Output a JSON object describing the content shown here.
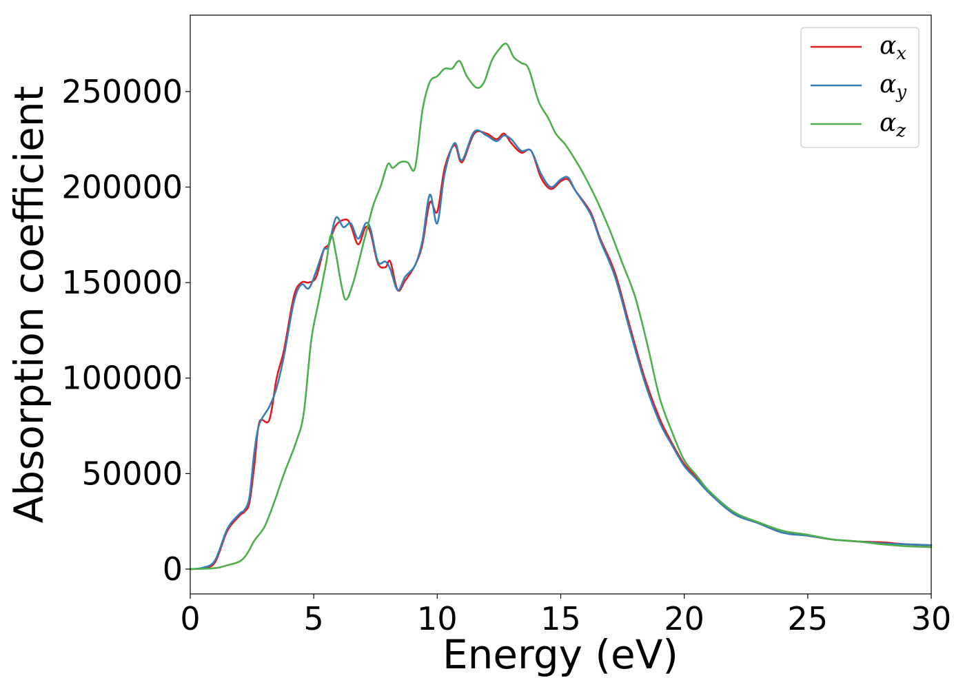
{
  "chart_data": {
    "type": "line",
    "title": "",
    "xlabel": "Energy (eV)",
    "ylabel": "Absorption coefficient",
    "xlim": [
      0,
      30
    ],
    "ylim": [
      -13000,
      290000
    ],
    "xticks": [
      0,
      5,
      10,
      15,
      20,
      25,
      30
    ],
    "yticks": [
      0,
      50000,
      100000,
      150000,
      200000,
      250000
    ],
    "grid": false,
    "legend_position": "top-right",
    "series": [
      {
        "name": "α",
        "subscript": "x",
        "color": "#e41a1c",
        "points": [
          [
            0,
            0
          ],
          [
            0.5,
            500
          ],
          [
            1,
            3500
          ],
          [
            1.5,
            20000
          ],
          [
            2,
            28000
          ],
          [
            2.2,
            30000
          ],
          [
            2.4,
            35000
          ],
          [
            2.6,
            55000
          ],
          [
            2.8,
            77000
          ],
          [
            3.2,
            78000
          ],
          [
            3.5,
            100000
          ],
          [
            3.8,
            115000
          ],
          [
            4.2,
            143000
          ],
          [
            4.5,
            150000
          ],
          [
            4.8,
            150000
          ],
          [
            5.1,
            153000
          ],
          [
            5.4,
            167000
          ],
          [
            5.6,
            170000
          ],
          [
            5.9,
            180000
          ],
          [
            6.3,
            183000
          ],
          [
            6.5,
            180000
          ],
          [
            6.8,
            170000
          ],
          [
            7.1,
            179000
          ],
          [
            7.3,
            176000
          ],
          [
            7.6,
            160000
          ],
          [
            7.9,
            158000
          ],
          [
            8.1,
            161000
          ],
          [
            8.4,
            146000
          ],
          [
            8.7,
            151000
          ],
          [
            9.1,
            159000
          ],
          [
            9.4,
            170000
          ],
          [
            9.7,
            192000
          ],
          [
            10,
            187000
          ],
          [
            10.3,
            210000
          ],
          [
            10.7,
            222000
          ],
          [
            11,
            213000
          ],
          [
            11.5,
            228000
          ],
          [
            12,
            228000
          ],
          [
            12.4,
            225000
          ],
          [
            12.7,
            228000
          ],
          [
            13,
            223000
          ],
          [
            13.4,
            218000
          ],
          [
            13.8,
            219000
          ],
          [
            14.2,
            205000
          ],
          [
            14.6,
            199000
          ],
          [
            15,
            203000
          ],
          [
            15.3,
            204000
          ],
          [
            15.6,
            198000
          ],
          [
            16.2,
            187000
          ],
          [
            16.6,
            173000
          ],
          [
            17.2,
            155000
          ],
          [
            17.8,
            127000
          ],
          [
            18.4,
            100000
          ],
          [
            19,
            79000
          ],
          [
            19.5,
            66000
          ],
          [
            20,
            55000
          ],
          [
            20.5,
            48000
          ],
          [
            21,
            40000
          ],
          [
            22,
            29000
          ],
          [
            23,
            24000
          ],
          [
            24,
            19000
          ],
          [
            25,
            17500
          ],
          [
            26,
            15500
          ],
          [
            27,
            14500
          ],
          [
            28,
            14000
          ],
          [
            29,
            13000
          ],
          [
            30,
            12500
          ]
        ]
      },
      {
        "name": "α",
        "subscript": "y",
        "color": "#377eb8",
        "points": [
          [
            0,
            0
          ],
          [
            0.5,
            700
          ],
          [
            1,
            4500
          ],
          [
            1.5,
            21000
          ],
          [
            2,
            29000
          ],
          [
            2.2,
            31000
          ],
          [
            2.4,
            38000
          ],
          [
            2.6,
            62000
          ],
          [
            2.8,
            76000
          ],
          [
            3.2,
            85000
          ],
          [
            3.5,
            95000
          ],
          [
            3.8,
            112000
          ],
          [
            4.2,
            140000
          ],
          [
            4.5,
            149000
          ],
          [
            4.8,
            147000
          ],
          [
            5.1,
            156000
          ],
          [
            5.4,
            167000
          ],
          [
            5.6,
            169000
          ],
          [
            5.9,
            184000
          ],
          [
            6.2,
            179000
          ],
          [
            6.5,
            181000
          ],
          [
            6.8,
            173000
          ],
          [
            7.1,
            181000
          ],
          [
            7.3,
            178000
          ],
          [
            7.6,
            161000
          ],
          [
            7.9,
            161000
          ],
          [
            8.1,
            157000
          ],
          [
            8.4,
            146000
          ],
          [
            8.7,
            153000
          ],
          [
            9.1,
            159000
          ],
          [
            9.4,
            172000
          ],
          [
            9.7,
            196000
          ],
          [
            10,
            181000
          ],
          [
            10.3,
            207000
          ],
          [
            10.7,
            223000
          ],
          [
            11,
            214000
          ],
          [
            11.5,
            229000
          ],
          [
            12,
            227000
          ],
          [
            12.4,
            224000
          ],
          [
            12.7,
            227000
          ],
          [
            13,
            225000
          ],
          [
            13.4,
            219000
          ],
          [
            13.8,
            219000
          ],
          [
            14.2,
            207000
          ],
          [
            14.6,
            200000
          ],
          [
            15,
            204000
          ],
          [
            15.3,
            205000
          ],
          [
            15.6,
            198000
          ],
          [
            16.2,
            186000
          ],
          [
            16.6,
            172000
          ],
          [
            17.2,
            153000
          ],
          [
            17.8,
            125000
          ],
          [
            18.4,
            98000
          ],
          [
            19,
            77000
          ],
          [
            19.5,
            65000
          ],
          [
            20,
            54000
          ],
          [
            20.5,
            47000
          ],
          [
            21,
            40000
          ],
          [
            22,
            29000
          ],
          [
            23,
            24000
          ],
          [
            24,
            19000
          ],
          [
            25,
            17500
          ],
          [
            26,
            15500
          ],
          [
            27,
            14500
          ],
          [
            28,
            13500
          ],
          [
            29,
            13000
          ],
          [
            30,
            12500
          ]
        ]
      },
      {
        "name": "α",
        "subscript": "z",
        "color": "#4daf4a",
        "points": [
          [
            0,
            0
          ],
          [
            1,
            500
          ],
          [
            1.5,
            2000
          ],
          [
            2,
            4000
          ],
          [
            2.3,
            8000
          ],
          [
            2.6,
            15000
          ],
          [
            3,
            22000
          ],
          [
            3.4,
            35000
          ],
          [
            3.8,
            50000
          ],
          [
            4.3,
            67000
          ],
          [
            4.6,
            82000
          ],
          [
            4.9,
            120000
          ],
          [
            5.2,
            140000
          ],
          [
            5.5,
            160000
          ],
          [
            5.7,
            175000
          ],
          [
            5.9,
            165000
          ],
          [
            6.1,
            150000
          ],
          [
            6.3,
            141000
          ],
          [
            6.6,
            150000
          ],
          [
            7,
            170000
          ],
          [
            7.4,
            190000
          ],
          [
            7.7,
            200000
          ],
          [
            8,
            212000
          ],
          [
            8.2,
            210000
          ],
          [
            8.5,
            213000
          ],
          [
            8.8,
            213000
          ],
          [
            9.1,
            210000
          ],
          [
            9.4,
            240000
          ],
          [
            9.7,
            255000
          ],
          [
            10,
            258000
          ],
          [
            10.3,
            262000
          ],
          [
            10.6,
            262000
          ],
          [
            10.9,
            266000
          ],
          [
            11.2,
            258000
          ],
          [
            11.6,
            252000
          ],
          [
            11.9,
            255000
          ],
          [
            12.2,
            266000
          ],
          [
            12.5,
            272000
          ],
          [
            12.8,
            275000
          ],
          [
            13.1,
            268000
          ],
          [
            13.4,
            265000
          ],
          [
            13.7,
            262000
          ],
          [
            14.1,
            245000
          ],
          [
            14.5,
            236000
          ],
          [
            14.8,
            228000
          ],
          [
            15.2,
            222000
          ],
          [
            15.6,
            214000
          ],
          [
            16,
            205000
          ],
          [
            16.5,
            192000
          ],
          [
            17,
            177000
          ],
          [
            17.5,
            160000
          ],
          [
            18,
            143000
          ],
          [
            18.5,
            118000
          ],
          [
            19,
            90000
          ],
          [
            19.5,
            72000
          ],
          [
            20,
            57000
          ],
          [
            20.5,
            49000
          ],
          [
            21,
            41000
          ],
          [
            22,
            30000
          ],
          [
            23,
            24500
          ],
          [
            24,
            20000
          ],
          [
            25,
            18000
          ],
          [
            26,
            15500
          ],
          [
            27,
            14500
          ],
          [
            28,
            13000
          ],
          [
            29,
            12000
          ],
          [
            30,
            11500
          ]
        ]
      }
    ]
  }
}
